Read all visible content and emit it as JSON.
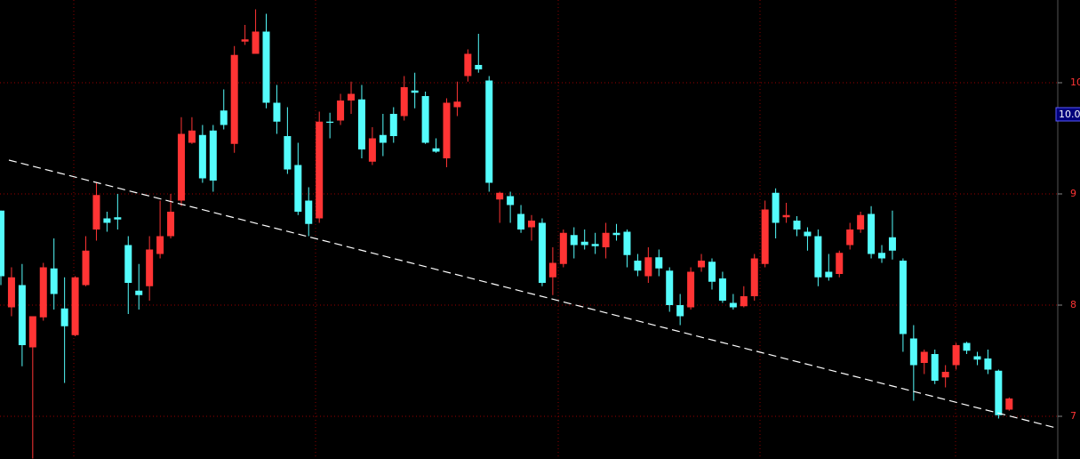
{
  "chart_data": {
    "type": "candlestick",
    "open": [
      8.85,
      7.98,
      8.18,
      7.62,
      7.89,
      8.33,
      7.97,
      7.73,
      8.18,
      8.68,
      8.78,
      8.79,
      8.54,
      8.13,
      8.17,
      8.46,
      8.62,
      8.94,
      9.46,
      9.53,
      9.57,
      9.75,
      9.45,
      10.37,
      10.26,
      10.46,
      9.82,
      9.52,
      9.26,
      8.94,
      8.78,
      9.65,
      9.66,
      9.84,
      9.85,
      9.29,
      9.53,
      9.72,
      9.7,
      9.93,
      9.88,
      9.41,
      9.32,
      9.78,
      10.06,
      10.16,
      10.02,
      8.95,
      8.98,
      8.82,
      8.7,
      8.74,
      8.25,
      8.37,
      8.63,
      8.57,
      8.55,
      8.52,
      8.65,
      8.66,
      8.4,
      8.26,
      8.43,
      8.31,
      8.0,
      7.98,
      8.34,
      8.39,
      8.24,
      8.02,
      7.99,
      8.08,
      8.37,
      9.01,
      8.79,
      8.76,
      8.66,
      8.62,
      8.3,
      8.28,
      8.54,
      8.68,
      8.82,
      8.47,
      8.61,
      8.4,
      7.7,
      7.48,
      7.56,
      7.35,
      7.46,
      7.66,
      7.54,
      7.52,
      7.41,
      7.06
    ],
    "high": [
      8.85,
      8.34,
      8.37,
      7.9,
      8.38,
      8.6,
      8.25,
      8.26,
      8.62,
      9.1,
      8.84,
      9.0,
      8.62,
      8.37,
      8.62,
      8.94,
      9.0,
      9.69,
      9.69,
      9.62,
      9.62,
      9.94,
      10.33,
      10.52,
      10.66,
      10.62,
      9.98,
      9.78,
      9.46,
      9.06,
      9.74,
      9.73,
      9.9,
      10.01,
      9.98,
      9.6,
      9.72,
      9.78,
      10.06,
      10.09,
      9.92,
      9.5,
      9.86,
      10.01,
      10.3,
      10.44,
      10.06,
      9.02,
      9.02,
      8.9,
      8.81,
      8.78,
      8.52,
      8.68,
      8.7,
      8.68,
      8.65,
      8.74,
      8.73,
      8.68,
      8.46,
      8.52,
      8.5,
      8.34,
      8.1,
      8.34,
      8.46,
      8.42,
      8.3,
      8.1,
      8.17,
      8.46,
      8.94,
      9.05,
      8.92,
      8.8,
      8.7,
      8.68,
      8.46,
      8.49,
      8.74,
      8.84,
      8.89,
      8.54,
      8.85,
      8.42,
      7.82,
      7.6,
      7.6,
      7.46,
      7.66,
      7.67,
      7.58,
      7.6,
      7.42,
      7.17
    ],
    "low": [
      8.18,
      7.9,
      7.45,
      6.62,
      7.86,
      7.96,
      7.3,
      7.72,
      8.17,
      8.58,
      8.66,
      8.68,
      7.92,
      7.96,
      8.04,
      8.42,
      8.6,
      8.89,
      9.45,
      9.1,
      9.02,
      9.58,
      9.37,
      10.34,
      10.26,
      9.77,
      9.54,
      9.18,
      8.81,
      8.62,
      8.74,
      9.5,
      9.62,
      9.72,
      9.32,
      9.26,
      9.34,
      9.46,
      9.66,
      9.77,
      9.45,
      9.37,
      9.24,
      9.7,
      10.01,
      10.09,
      9.02,
      8.74,
      8.74,
      8.65,
      8.58,
      8.17,
      8.09,
      8.34,
      8.42,
      8.5,
      8.46,
      8.42,
      8.58,
      8.34,
      8.26,
      8.2,
      8.26,
      7.94,
      7.82,
      7.96,
      8.3,
      8.14,
      8.02,
      7.96,
      7.98,
      8.04,
      8.34,
      8.6,
      8.74,
      8.62,
      8.49,
      8.17,
      8.22,
      8.25,
      8.5,
      8.65,
      8.42,
      8.38,
      8.41,
      7.58,
      7.14,
      7.38,
      7.29,
      7.26,
      7.42,
      7.56,
      7.46,
      7.38,
      6.98,
      7.05
    ],
    "close": [
      8.26,
      8.25,
      7.64,
      7.9,
      8.34,
      8.1,
      7.81,
      8.25,
      8.49,
      8.99,
      8.74,
      8.77,
      8.2,
      8.09,
      8.5,
      8.62,
      8.84,
      9.54,
      9.57,
      9.14,
      9.12,
      9.62,
      10.25,
      10.39,
      10.46,
      9.82,
      9.65,
      9.22,
      8.84,
      8.73,
      9.65,
      9.64,
      9.84,
      9.9,
      9.4,
      9.5,
      9.46,
      9.52,
      9.96,
      9.91,
      9.46,
      9.38,
      9.82,
      9.83,
      10.26,
      10.12,
      9.1,
      9.01,
      8.9,
      8.68,
      8.76,
      8.2,
      8.38,
      8.65,
      8.54,
      8.54,
      8.53,
      8.65,
      8.63,
      8.45,
      8.31,
      8.43,
      8.33,
      8.0,
      7.9,
      8.3,
      8.4,
      8.21,
      8.04,
      7.98,
      8.08,
      8.42,
      8.86,
      8.74,
      8.81,
      8.68,
      8.62,
      8.25,
      8.25,
      8.47,
      8.68,
      8.81,
      8.46,
      8.42,
      8.49,
      7.74,
      7.46,
      7.58,
      7.32,
      7.4,
      7.64,
      7.59,
      7.51,
      7.42,
      7.01,
      7.16
    ],
    "up_color": "#ff3434",
    "down_color": "#54fcfc",
    "ylim": [
      6.616,
      10.744
    ],
    "yticks": [
      7,
      8,
      9,
      10
    ],
    "grid": true,
    "grid_color": "#9a0000",
    "price_tag": "10.0"
  }
}
